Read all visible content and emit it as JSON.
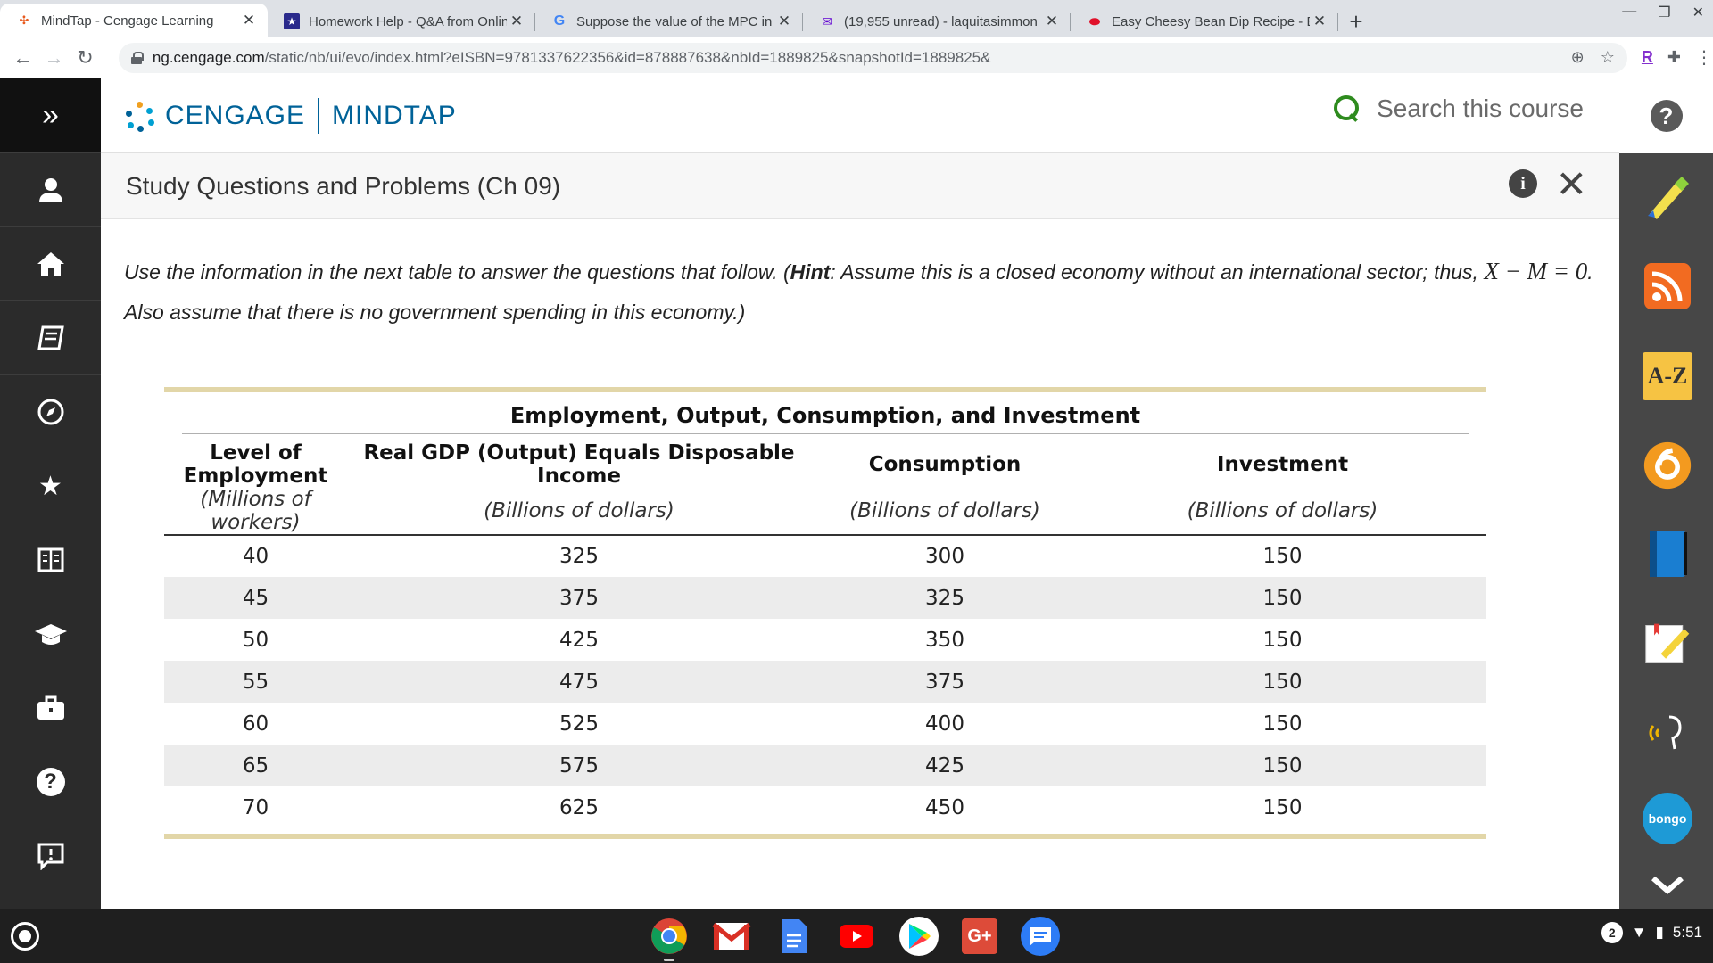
{
  "browser": {
    "tabs": [
      {
        "title": "MindTap - Cengage Learning",
        "active": true
      },
      {
        "title": "Homework Help - Q&A from Onlin",
        "active": false
      },
      {
        "title": "Suppose the value of the MPC in",
        "active": false
      },
      {
        "title": "(19,955 unread) - laquitasimmon",
        "active": false
      },
      {
        "title": "Easy Cheesy Bean Dip Recipe - B",
        "active": false
      }
    ],
    "url_host": "ng.cengage.com",
    "url_path": "/static/nb/ui/evo/index.html?eISBN=9781337622356&id=878887638&nbId=1889825&snapshotId=1889825&",
    "ext_r": "R"
  },
  "header": {
    "brand_left": "CENGAGE",
    "brand_right": "MINDTAP",
    "search_placeholder": "Search this course",
    "help": "?"
  },
  "activity": {
    "title": "Study Questions and Problems (Ch 09)",
    "info": "i",
    "close": "✕"
  },
  "question": {
    "part1": "Use the information in the next table to answer the questions that follow. (",
    "hint_label": "Hint",
    "part2": ": Assume this is a closed economy without an international sector; thus, ",
    "math": "X − M = 0",
    "part3": ". Also assume that there is no government spending in this economy.)"
  },
  "table": {
    "caption": "Employment, Output, Consumption, and Investment",
    "columns": [
      {
        "header": "Level of Employment",
        "unit": "(Millions of workers)"
      },
      {
        "header": "Real GDP (Output) Equals Disposable Income",
        "unit": "(Billions of dollars)"
      },
      {
        "header": "Consumption",
        "unit": "(Billions of dollars)"
      },
      {
        "header": "Investment",
        "unit": "(Billions of dollars)"
      }
    ],
    "rows": [
      [
        "40",
        "325",
        "300",
        "150"
      ],
      [
        "45",
        "375",
        "325",
        "150"
      ],
      [
        "50",
        "425",
        "350",
        "150"
      ],
      [
        "55",
        "475",
        "375",
        "150"
      ],
      [
        "60",
        "525",
        "400",
        "150"
      ],
      [
        "65",
        "575",
        "425",
        "150"
      ],
      [
        "70",
        "625",
        "450",
        "150"
      ]
    ]
  },
  "rightrail": {
    "az_label": "A-Z",
    "bongo_label": "bongo"
  },
  "shelf": {
    "notification_count": "2",
    "time": "5:51"
  },
  "colors": {
    "cengage_blue": "#006298",
    "search_green": "#2e8b1e",
    "gold_rule": "#e2d6a8"
  }
}
